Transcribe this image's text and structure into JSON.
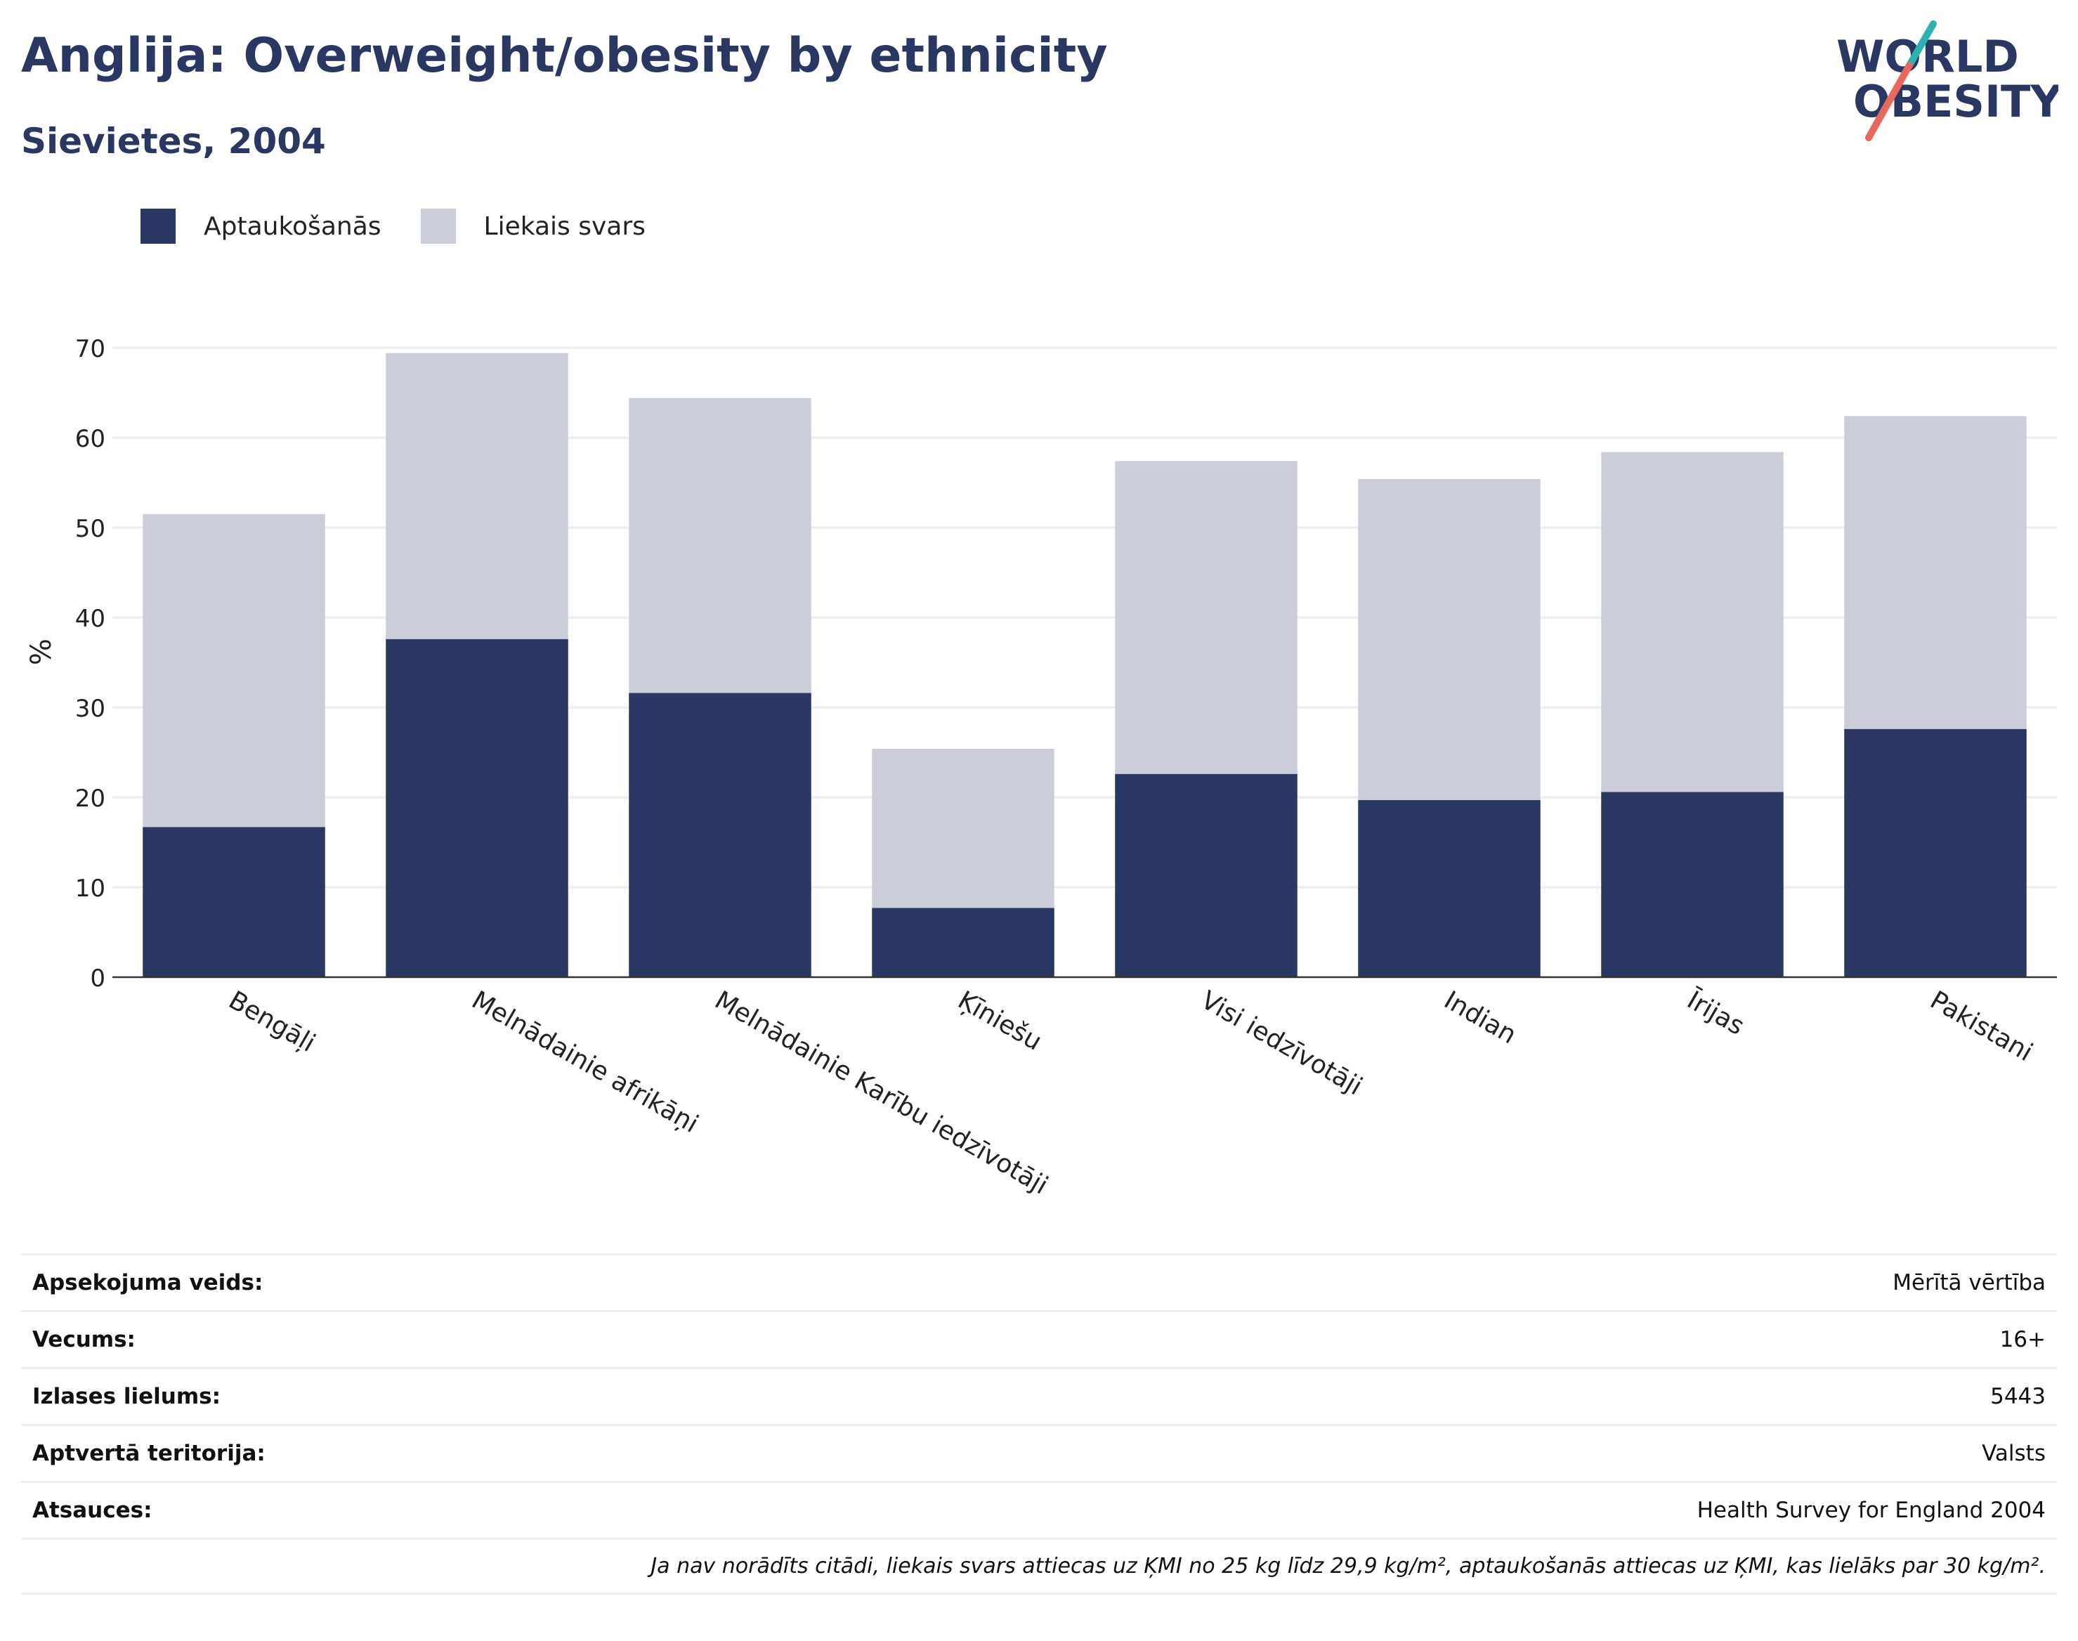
{
  "header": {
    "title": "Anglija: Overweight/obesity by ethnicity",
    "subtitle": "Sievietes, 2004"
  },
  "logo": {
    "line1": "WORLD",
    "line2": "OBESITY"
  },
  "colors": {
    "obesity": "#2b3763",
    "overweight": "#cbcdd8",
    "text": "#2b3763",
    "logo_teal": "#2bb3b1",
    "logo_coral": "#e8685b"
  },
  "legend": [
    {
      "label": "Aptaukošanās",
      "color": "#2b3763"
    },
    {
      "label": "Liekais svars",
      "color": "#cbcdd8"
    }
  ],
  "chart_data": {
    "type": "bar",
    "stacked": true,
    "categories": [
      "Bengāļi",
      "Melnādainie afrikāņi",
      "Melnādainie Karību iedzīvotāji",
      "Ķīniešu",
      "Visi iedzīvotāji",
      "Indian",
      "Īrijas",
      "Pakistani"
    ],
    "series": [
      {
        "name": "Aptaukošanās",
        "values": [
          16.7,
          37.6,
          31.6,
          7.7,
          22.6,
          19.7,
          20.6,
          27.6
        ]
      },
      {
        "name": "Liekais svars",
        "values": [
          34.8,
          31.8,
          32.8,
          17.7,
          34.8,
          35.7,
          37.8,
          34.8
        ]
      }
    ],
    "ylabel": "%",
    "xlabel": "",
    "ylim": [
      0,
      70
    ],
    "yticks": [
      0,
      10,
      20,
      30,
      40,
      50,
      60,
      70
    ],
    "grid": true,
    "legend_position": "top-left"
  },
  "info": {
    "rows": [
      {
        "key": "Apsekojuma veids:",
        "value": "Mērītā vērtība"
      },
      {
        "key": "Vecums:",
        "value": "16+"
      },
      {
        "key": "Izlases lielums:",
        "value": "5443"
      },
      {
        "key": "Aptvertā teritorija:",
        "value": "Valsts"
      },
      {
        "key": "Atsauces:",
        "value": "Health Survey for England 2004"
      }
    ],
    "note": "Ja nav norādīts citādi, liekais svars attiecas uz ĶMI no 25 kg līdz 29,9 kg/m², aptaukošanās attiecas uz ĶMI, kas lielāks par 30 kg/m²."
  }
}
